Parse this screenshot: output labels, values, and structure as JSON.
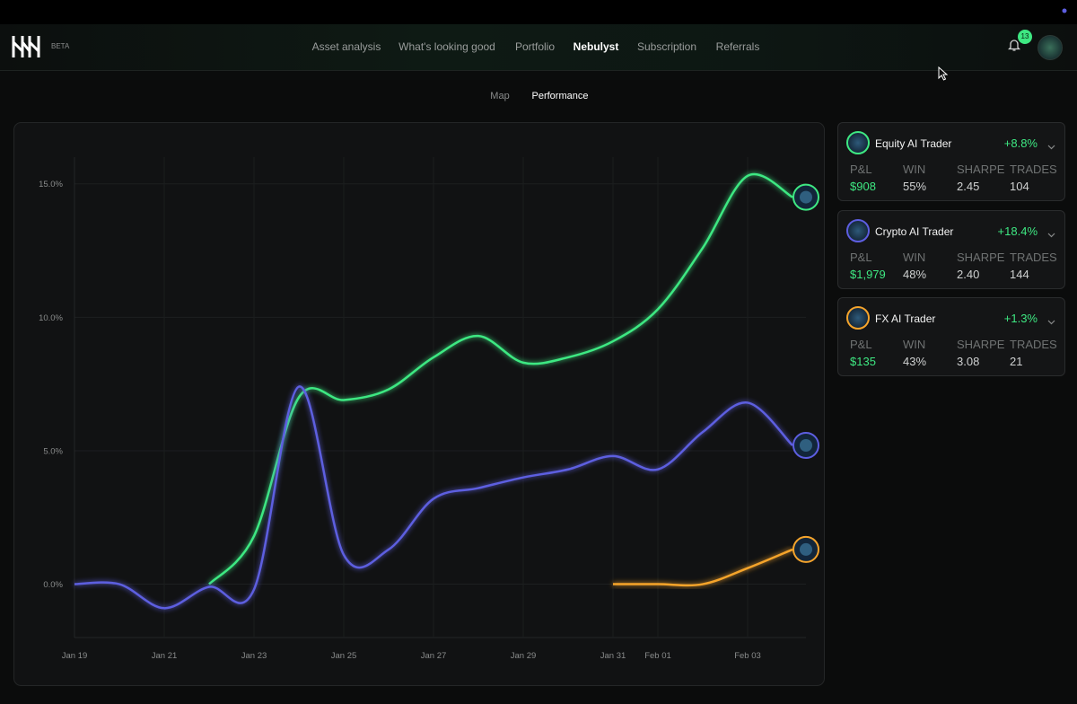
{
  "header": {
    "badge": "BETA",
    "nav": [
      "Asset analysis",
      "What's looking good",
      "Portfolio",
      "Nebulyst",
      "Subscription",
      "Referrals"
    ],
    "notifications": "13"
  },
  "tabs": [
    "Map",
    "Performance"
  ],
  "chart_data": {
    "type": "line",
    "categories": [
      "Jan 19",
      null,
      "Jan 21",
      null,
      "Jan 23",
      null,
      "Jan 25",
      null,
      "Jan 27",
      null,
      "Jan 29",
      null,
      "Jan 31",
      "Feb 01",
      null,
      "Feb 03",
      null
    ],
    "series": [
      {
        "name": "Equity AI Trader",
        "color": "#3ee882",
        "values": [
          null,
          null,
          null,
          0,
          1.8,
          7.0,
          6.9,
          7.3,
          8.5,
          9.3,
          8.3,
          8.5,
          9.1,
          10.3,
          12.6,
          15.3,
          14.5
        ]
      },
      {
        "name": "Crypto AI Trader",
        "color": "#5d5ee0",
        "values": [
          0,
          0,
          -0.9,
          -0.1,
          -0.2,
          7.4,
          1.1,
          1.3,
          3.2,
          3.6,
          4.0,
          4.3,
          4.8,
          4.3,
          5.7,
          6.8,
          5.2
        ]
      },
      {
        "name": "FX AI Trader",
        "color": "#f5a42c",
        "values": [
          null,
          null,
          null,
          null,
          null,
          null,
          null,
          null,
          null,
          null,
          null,
          null,
          0,
          0,
          0,
          0.6,
          1.3
        ]
      }
    ],
    "ylim": [
      -2,
      16
    ],
    "yticks": [
      {
        "value": 0,
        "label": "0.0%"
      },
      {
        "value": 5,
        "label": "5.0%"
      },
      {
        "value": 10,
        "label": "10.0%"
      },
      {
        "value": 15,
        "label": "15.0%"
      }
    ],
    "grid": true
  },
  "traders": {
    "stat_labels": [
      "P&L",
      "WIN",
      "SHARPE",
      "TRADES"
    ],
    "cards": [
      {
        "change": "+8.8%",
        "stats": [
          "$908",
          "55%",
          "2.45",
          "104"
        ]
      },
      {
        "change": "+18.4%",
        "stats": [
          "$1,979",
          "48%",
          "2.40",
          "144"
        ]
      },
      {
        "change": "+1.3%",
        "stats": [
          "$135",
          "43%",
          "3.08",
          "21"
        ]
      }
    ]
  }
}
